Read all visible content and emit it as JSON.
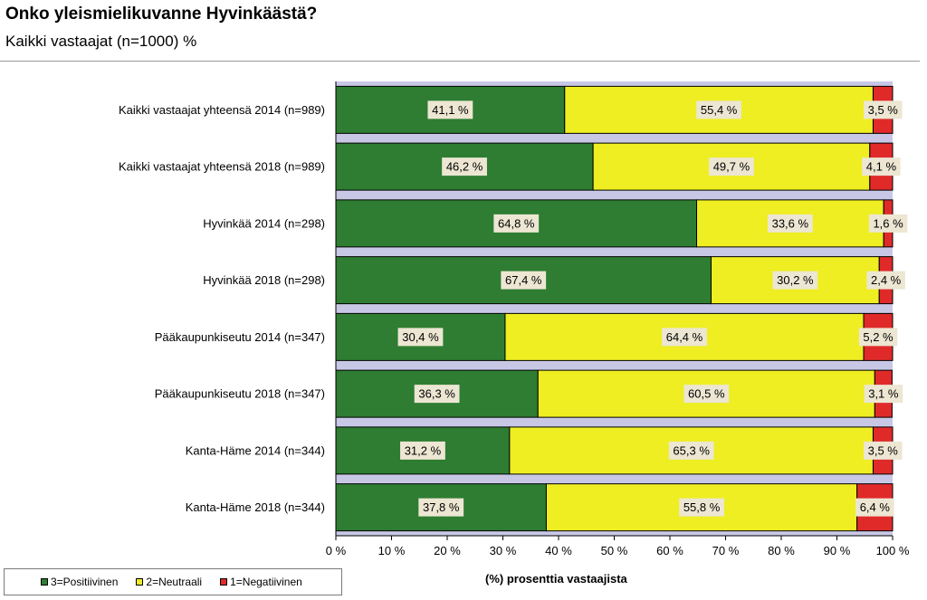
{
  "chart_data": {
    "type": "bar",
    "orientation": "horizontal",
    "stacked": true,
    "title": "Onko yleismielikuvanne Hyvinkäästä?",
    "subtitle": "Kaikki vastaajat (n=1000) %",
    "xlabel": "(%) prosenttia vastaajista",
    "xlim": [
      0,
      100
    ],
    "xticks": [
      "0 %",
      "10 %",
      "20 %",
      "30 %",
      "40 %",
      "50 %",
      "60 %",
      "70 %",
      "80 %",
      "90 %",
      "100 %"
    ],
    "legend_position": "bottom-left",
    "categories": [
      "Kaikki vastaajat yhteensä 2014 (n=989)",
      "Kaikki vastaajat yhteensä 2018 (n=989)",
      "Hyvinkää 2014 (n=298)",
      "Hyvinkää 2018 (n=298)",
      "Pääkaupunkiseutu 2014 (n=347)",
      "Pääkaupunkiseutu 2018 (n=347)",
      "Kanta-Häme 2014 (n=344)",
      "Kanta-Häme 2018 (n=344)"
    ],
    "series": [
      {
        "name": "3=Positiivinen",
        "color": "#2e7d32",
        "values": [
          41.1,
          46.2,
          64.8,
          67.4,
          30.4,
          36.3,
          31.2,
          37.8
        ],
        "labels": [
          "41,1 %",
          "46,2 %",
          "64,8 %",
          "67,4 %",
          "30,4 %",
          "36,3 %",
          "31,2 %",
          "37,8 %"
        ]
      },
      {
        "name": "2=Neutraali",
        "color": "#eeee22",
        "values": [
          55.4,
          49.7,
          33.6,
          30.2,
          64.4,
          60.5,
          65.3,
          55.8
        ],
        "labels": [
          "55,4 %",
          "49,7 %",
          "33,6 %",
          "30,2 %",
          "64,4 %",
          "60,5 %",
          "65,3 %",
          "55,8 %"
        ]
      },
      {
        "name": "1=Negatiivinen",
        "color": "#e02a2a",
        "values": [
          3.5,
          4.1,
          1.6,
          2.4,
          5.2,
          3.1,
          3.5,
          6.4
        ],
        "labels": [
          "3,5 %",
          "4,1 %",
          "1,6 %",
          "2,4 %",
          "5,2 %",
          "3,1 %",
          "3,5 %",
          "6,4 %"
        ]
      }
    ],
    "colors": {
      "plot_background": "#c8c8e6",
      "label_background": "#ece6d2"
    }
  }
}
